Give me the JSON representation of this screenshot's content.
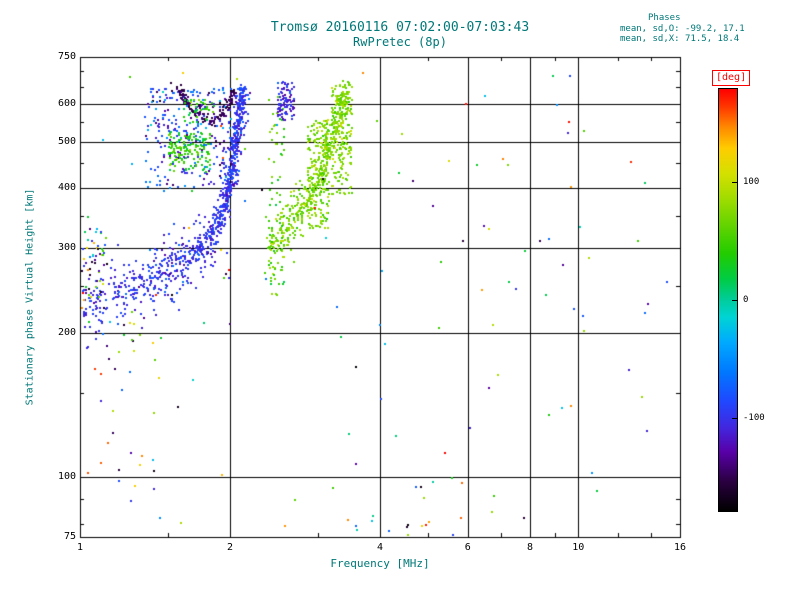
{
  "stats": {
    "header": "Phases",
    "o_line": "mean, sd,O: -99.2, 17.1",
    "x_line": "mean, sd,X:  71.5, 18.4"
  },
  "colors": {
    "accent": "#007878",
    "tick_text": "#000000",
    "grid": "#000000",
    "background": "#ffffff",
    "colorbar_label": "#ff0000"
  },
  "chart_data": {
    "type": "scatter",
    "title": "Tromsø 20160116 07:02:00-07:03:43",
    "subtitle": "RwPretec (8p)",
    "xlabel": "Frequency [MHz]",
    "ylabel": "Stationary phase Virtual Height [km]",
    "x_scale": "log",
    "y_scale": "log",
    "x_range": [
      1,
      16
    ],
    "y_range": [
      75,
      750
    ],
    "x_ticks": [
      1,
      2,
      4,
      6,
      8,
      10,
      16
    ],
    "x_minor_ticks": [
      1.5,
      3,
      5,
      7,
      9,
      12,
      14
    ],
    "y_ticks": [
      75,
      100,
      200,
      300,
      400,
      500,
      600,
      750
    ],
    "y_minor_ticks": [
      80,
      90,
      150,
      250,
      350,
      450,
      550,
      650,
      700
    ],
    "x_gridlines": [
      2,
      4,
      6,
      8,
      10
    ],
    "y_gridlines": [
      100,
      200,
      300,
      400,
      500,
      600
    ],
    "colorbar": {
      "label": "[deg]",
      "range": [
        -180,
        180
      ],
      "ticks": [
        100,
        0,
        -100
      ],
      "stops": [
        [
          0.0,
          "#000000"
        ],
        [
          0.07,
          "#2a0040"
        ],
        [
          0.14,
          "#5800a8"
        ],
        [
          0.2,
          "#4028e0"
        ],
        [
          0.26,
          "#2048ff"
        ],
        [
          0.33,
          "#0078ff"
        ],
        [
          0.4,
          "#00aaff"
        ],
        [
          0.46,
          "#00d4d4"
        ],
        [
          0.5,
          "#00cc9c"
        ],
        [
          0.55,
          "#00cc44"
        ],
        [
          0.61,
          "#22cc00"
        ],
        [
          0.68,
          "#66d400"
        ],
        [
          0.74,
          "#a0dc00"
        ],
        [
          0.8,
          "#d4e000"
        ],
        [
          0.86,
          "#ffcc00"
        ],
        [
          0.91,
          "#ff8800"
        ],
        [
          0.96,
          "#ff3300"
        ],
        [
          1.0,
          "#ff0000"
        ]
      ]
    },
    "clusters": [
      {
        "name": "o-trace-core",
        "type": "trace",
        "n": 650,
        "path": [
          [
            1.0,
            222
          ],
          [
            1.15,
            235
          ],
          [
            1.3,
            248
          ],
          [
            1.45,
            262
          ],
          [
            1.6,
            280
          ],
          [
            1.72,
            298
          ],
          [
            1.82,
            318
          ],
          [
            1.9,
            345
          ],
          [
            1.97,
            385
          ],
          [
            2.02,
            440
          ],
          [
            2.06,
            510
          ],
          [
            2.09,
            585
          ],
          [
            2.11,
            650
          ]
        ],
        "jitter_logf": 0.01,
        "jitter_h": 14,
        "deg": -99,
        "deg_sd": 12
      },
      {
        "name": "o-trace-fuzz",
        "type": "trace",
        "n": 260,
        "path": [
          [
            1.0,
            228
          ],
          [
            1.2,
            244
          ],
          [
            1.4,
            262
          ],
          [
            1.6,
            284
          ],
          [
            1.75,
            305
          ],
          [
            1.88,
            335
          ],
          [
            1.97,
            390
          ],
          [
            2.03,
            470
          ],
          [
            2.08,
            560
          ],
          [
            2.12,
            640
          ]
        ],
        "jitter_logf": 0.022,
        "jitter_h": 30,
        "deg": -99,
        "deg_sd": 17
      },
      {
        "name": "o-upper-scatter",
        "type": "blob",
        "n": 260,
        "f_range": [
          1.35,
          2.05
        ],
        "h_range": [
          400,
          650
        ],
        "deg": -95,
        "deg_sd": 30
      },
      {
        "name": "purple-cusp",
        "type": "trace",
        "n": 150,
        "path": [
          [
            1.57,
            648
          ],
          [
            1.62,
            612
          ],
          [
            1.68,
            582
          ],
          [
            1.76,
            562
          ],
          [
            1.85,
            556
          ],
          [
            1.93,
            572
          ],
          [
            1.99,
            602
          ],
          [
            2.03,
            642
          ]
        ],
        "jitter_logf": 0.005,
        "jitter_h": 8,
        "deg": -150,
        "deg_sd": 7
      },
      {
        "name": "green-patch-upper-left",
        "type": "blob",
        "n": 150,
        "f_range": [
          1.5,
          1.82
        ],
        "h_range": [
          435,
          525
        ],
        "deg": 42,
        "deg_sd": 18
      },
      {
        "name": "green-specks-high",
        "type": "blob",
        "n": 40,
        "f_range": [
          1.6,
          1.85
        ],
        "h_range": [
          545,
          615
        ],
        "deg": 40,
        "deg_sd": 20
      },
      {
        "name": "x-trace",
        "type": "trace",
        "n": 420,
        "path": [
          [
            2.35,
            295
          ],
          [
            2.5,
            318
          ],
          [
            2.62,
            338
          ],
          [
            2.75,
            360
          ],
          [
            2.88,
            385
          ],
          [
            3.0,
            415
          ],
          [
            3.1,
            455
          ],
          [
            3.2,
            510
          ],
          [
            3.3,
            575
          ],
          [
            3.38,
            640
          ]
        ],
        "jitter_logf": 0.012,
        "jitter_h": 22,
        "deg": 71,
        "deg_sd": 14
      },
      {
        "name": "x-column-1",
        "type": "blob",
        "n": 190,
        "f_range": [
          2.85,
          3.15
        ],
        "h_range": [
          330,
          560
        ],
        "deg": 74,
        "deg_sd": 14
      },
      {
        "name": "x-column-2",
        "type": "blob",
        "n": 190,
        "f_range": [
          3.18,
          3.5
        ],
        "h_range": [
          390,
          660
        ],
        "deg": 72,
        "deg_sd": 14
      },
      {
        "name": "x-sparse-column",
        "type": "blob",
        "n": 70,
        "f_range": [
          2.38,
          2.56
        ],
        "h_range": [
          240,
          640
        ],
        "deg": 58,
        "deg_sd": 20
      },
      {
        "name": "blue-top-column",
        "type": "blob",
        "n": 90,
        "f_range": [
          2.48,
          2.68
        ],
        "h_range": [
          555,
          668
        ],
        "deg": -105,
        "deg_sd": 14
      },
      {
        "name": "left-edge-mixed",
        "type": "blob",
        "n": 60,
        "f_range": [
          1.0,
          1.13
        ],
        "h_range": [
          225,
          335
        ],
        "deg": "random"
      },
      {
        "name": "lower-left-sparse",
        "type": "blob",
        "n": 34,
        "f_range": [
          1.02,
          1.45
        ],
        "h_range": [
          88,
          215
        ],
        "deg": "random"
      },
      {
        "name": "bottom-row",
        "type": "blob",
        "n": 12,
        "f_range": [
          3.3,
          5.6
        ],
        "h_range": [
          76,
          84
        ],
        "deg": "random"
      },
      {
        "name": "background-noise",
        "type": "blob",
        "n": 130,
        "f_range": [
          1.0,
          15.0
        ],
        "h_range": [
          78,
          700
        ],
        "h_log": true,
        "deg": "random"
      }
    ]
  }
}
